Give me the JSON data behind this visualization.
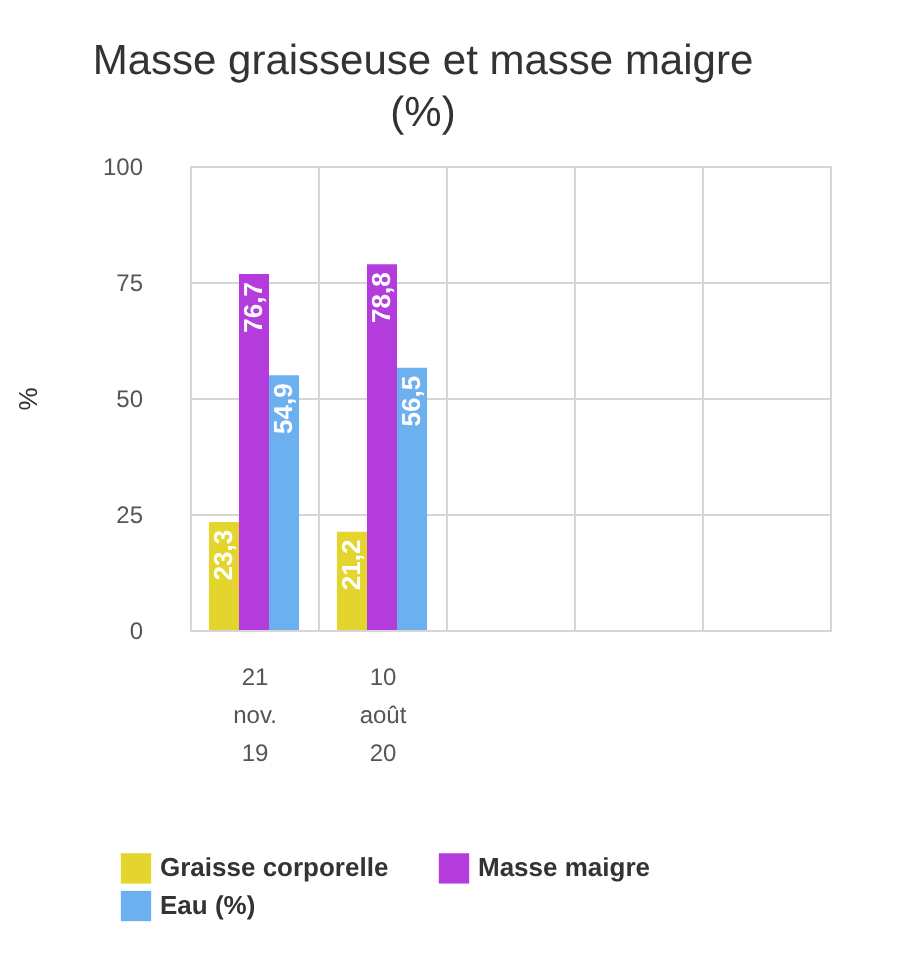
{
  "chart_data": {
    "type": "bar",
    "title": "Masse graisseuse et masse maigre (%)",
    "ylabel": "%",
    "categories": [
      "21 nov. 19",
      "10 août 20",
      null,
      null,
      null
    ],
    "series": [
      {
        "name": "Graisse corporelle",
        "color": "#e3d52e",
        "values": [
          23.3,
          21.2,
          null,
          null,
          null
        ],
        "value_labels": [
          "23,3",
          "21,2",
          null,
          null,
          null
        ]
      },
      {
        "name": "Masse maigre",
        "color": "#b43cdc",
        "values": [
          76.7,
          78.8,
          null,
          null,
          null
        ],
        "value_labels": [
          "76,7",
          "78,8",
          null,
          null,
          null
        ]
      },
      {
        "name": "Eau (%)",
        "color": "#6cb0f0",
        "values": [
          54.9,
          56.5,
          null,
          null,
          null
        ],
        "value_labels": [
          "54,9",
          "56,5",
          null,
          null,
          null
        ]
      }
    ],
    "ylim": [
      0,
      100
    ],
    "yticks": [
      0,
      25,
      50,
      75,
      100
    ],
    "grid": true,
    "legend": "bottom"
  }
}
